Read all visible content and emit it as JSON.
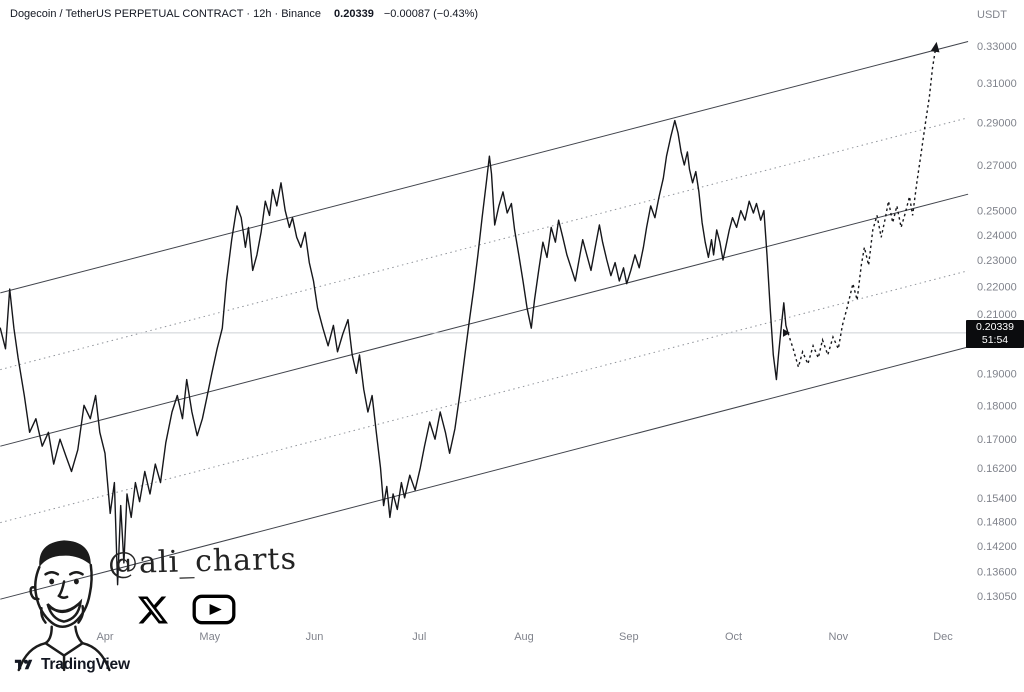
{
  "header": {
    "symbol_title": "Dogecoin / TetherUS PERPETUAL CONTRACT · 12h · Binance",
    "last_price": "0.20339",
    "change": "−0.00087 (−0.43%)",
    "quote_currency": "USDT"
  },
  "price_scale": {
    "badge": {
      "price": "0.20339",
      "countdown": "51:54"
    }
  },
  "watermark": {
    "handle": "@ali_charts",
    "portrait": "cartoon-man-face-sketch",
    "social_icons": [
      "x-twitter-logo",
      "youtube-logo"
    ]
  },
  "footer": {
    "brand": "TradingView"
  },
  "colors": {
    "price_line": "#16171b",
    "axis_text": "#80838c",
    "channel_solid": "#41444c",
    "channel_dotted": "#90949b",
    "badge_bg": "#0b0c0e",
    "current_price_line": "#cdd0d5"
  },
  "chart_data": {
    "type": "line",
    "title": "Dogecoin / TetherUS PERPETUAL CONTRACT · 12h · Binance",
    "scale": "log",
    "last_price": 0.20339,
    "x_axis": {
      "unit": "month",
      "labels": [
        "Apr",
        "May",
        "Jun",
        "Jul",
        "Aug",
        "Sep",
        "Oct",
        "Nov",
        "Dec"
      ]
    },
    "y_axis": {
      "ylim": [
        0.128,
        0.345
      ],
      "ticks": [
        {
          "label": "0.33000",
          "value": 0.33
        },
        {
          "label": "0.31000",
          "value": 0.31
        },
        {
          "label": "0.29000",
          "value": 0.29
        },
        {
          "label": "0.27000",
          "value": 0.27
        },
        {
          "label": "0.25000",
          "value": 0.25
        },
        {
          "label": "0.24000",
          "value": 0.24
        },
        {
          "label": "0.23000",
          "value": 0.23
        },
        {
          "label": "0.22000",
          "value": 0.22
        },
        {
          "label": "0.21000",
          "value": 0.21
        },
        {
          "label": "0.19000",
          "value": 0.19
        },
        {
          "label": "0.18000",
          "value": 0.18
        },
        {
          "label": "0.17000",
          "value": 0.17
        },
        {
          "label": "0.16200",
          "value": 0.162
        },
        {
          "label": "0.15400",
          "value": 0.154
        },
        {
          "label": "0.14800",
          "value": 0.148
        },
        {
          "label": "0.14200",
          "value": 0.142
        },
        {
          "label": "0.13600",
          "value": 0.136
        },
        {
          "label": "0.13050",
          "value": 0.1305
        }
      ]
    },
    "channel": {
      "t_left": -1.0,
      "t_right": 8.24,
      "lines": [
        {
          "name": "upper",
          "style": "solid",
          "p_left": 0.2176,
          "p_right": 0.3325
        },
        {
          "name": "upper-quartile",
          "style": "dotted",
          "p_left": 0.1912,
          "p_right": 0.2924
        },
        {
          "name": "median",
          "style": "solid",
          "p_left": 0.168,
          "p_right": 0.257
        },
        {
          "name": "lower-quartile",
          "style": "dotted",
          "p_left": 0.1477,
          "p_right": 0.2259
        },
        {
          "name": "lower",
          "style": "solid",
          "p_left": 0.1298,
          "p_right": 0.1986
        }
      ]
    },
    "series": [
      [
        -1.0,
        0.205
      ],
      [
        -0.95,
        0.198
      ],
      [
        -0.91,
        0.219
      ],
      [
        -0.87,
        0.205
      ],
      [
        -0.83,
        0.195
      ],
      [
        -0.77,
        0.183
      ],
      [
        -0.72,
        0.172
      ],
      [
        -0.66,
        0.176
      ],
      [
        -0.6,
        0.168
      ],
      [
        -0.54,
        0.172
      ],
      [
        -0.49,
        0.163
      ],
      [
        -0.43,
        0.17
      ],
      [
        -0.37,
        0.165
      ],
      [
        -0.32,
        0.161
      ],
      [
        -0.26,
        0.167
      ],
      [
        -0.2,
        0.18
      ],
      [
        -0.14,
        0.176
      ],
      [
        -0.09,
        0.183
      ],
      [
        -0.05,
        0.172
      ],
      [
        0.0,
        0.166
      ],
      [
        0.05,
        0.15
      ],
      [
        0.09,
        0.158
      ],
      [
        0.12,
        0.133
      ],
      [
        0.15,
        0.152
      ],
      [
        0.18,
        0.138
      ],
      [
        0.21,
        0.155
      ],
      [
        0.25,
        0.149
      ],
      [
        0.29,
        0.158
      ],
      [
        0.33,
        0.153
      ],
      [
        0.38,
        0.161
      ],
      [
        0.43,
        0.155
      ],
      [
        0.48,
        0.163
      ],
      [
        0.53,
        0.158
      ],
      [
        0.58,
        0.169
      ],
      [
        0.64,
        0.178
      ],
      [
        0.69,
        0.183
      ],
      [
        0.74,
        0.176
      ],
      [
        0.78,
        0.188
      ],
      [
        0.83,
        0.178
      ],
      [
        0.88,
        0.171
      ],
      [
        0.93,
        0.176
      ],
      [
        0.97,
        0.182
      ],
      [
        1.02,
        0.19
      ],
      [
        1.07,
        0.198
      ],
      [
        1.12,
        0.205
      ],
      [
        1.16,
        0.222
      ],
      [
        1.21,
        0.238
      ],
      [
        1.26,
        0.252
      ],
      [
        1.3,
        0.247
      ],
      [
        1.34,
        0.235
      ],
      [
        1.37,
        0.243
      ],
      [
        1.41,
        0.226
      ],
      [
        1.45,
        0.232
      ],
      [
        1.49,
        0.241
      ],
      [
        1.53,
        0.254
      ],
      [
        1.57,
        0.248
      ],
      [
        1.6,
        0.259
      ],
      [
        1.64,
        0.252
      ],
      [
        1.68,
        0.262
      ],
      [
        1.72,
        0.25
      ],
      [
        1.76,
        0.243
      ],
      [
        1.79,
        0.247
      ],
      [
        1.83,
        0.239
      ],
      [
        1.87,
        0.235
      ],
      [
        1.91,
        0.241
      ],
      [
        1.95,
        0.229
      ],
      [
        1.99,
        0.222
      ],
      [
        2.03,
        0.212
      ],
      [
        2.08,
        0.205
      ],
      [
        2.13,
        0.199
      ],
      [
        2.18,
        0.206
      ],
      [
        2.22,
        0.197
      ],
      [
        2.27,
        0.203
      ],
      [
        2.32,
        0.208
      ],
      [
        2.36,
        0.196
      ],
      [
        2.4,
        0.19
      ],
      [
        2.43,
        0.196
      ],
      [
        2.47,
        0.185
      ],
      [
        2.51,
        0.178
      ],
      [
        2.55,
        0.183
      ],
      [
        2.59,
        0.172
      ],
      [
        2.63,
        0.162
      ],
      [
        2.66,
        0.152
      ],
      [
        2.69,
        0.157
      ],
      [
        2.72,
        0.149
      ],
      [
        2.75,
        0.155
      ],
      [
        2.79,
        0.151
      ],
      [
        2.83,
        0.158
      ],
      [
        2.86,
        0.154
      ],
      [
        2.91,
        0.16
      ],
      [
        2.96,
        0.156
      ],
      [
        3.01,
        0.162
      ],
      [
        3.05,
        0.168
      ],
      [
        3.1,
        0.175
      ],
      [
        3.15,
        0.17
      ],
      [
        3.2,
        0.178
      ],
      [
        3.25,
        0.172
      ],
      [
        3.29,
        0.166
      ],
      [
        3.34,
        0.173
      ],
      [
        3.39,
        0.184
      ],
      [
        3.44,
        0.197
      ],
      [
        3.48,
        0.208
      ],
      [
        3.52,
        0.219
      ],
      [
        3.56,
        0.232
      ],
      [
        3.6,
        0.247
      ],
      [
        3.64,
        0.262
      ],
      [
        3.67,
        0.274
      ],
      [
        3.69,
        0.266
      ],
      [
        3.72,
        0.244
      ],
      [
        3.76,
        0.252
      ],
      [
        3.8,
        0.258
      ],
      [
        3.84,
        0.249
      ],
      [
        3.88,
        0.253
      ],
      [
        3.91,
        0.242
      ],
      [
        3.95,
        0.232
      ],
      [
        3.99,
        0.222
      ],
      [
        4.03,
        0.212
      ],
      [
        4.07,
        0.205
      ],
      [
        4.1,
        0.215
      ],
      [
        4.14,
        0.226
      ],
      [
        4.18,
        0.237
      ],
      [
        4.22,
        0.231
      ],
      [
        4.26,
        0.243
      ],
      [
        4.3,
        0.237
      ],
      [
        4.33,
        0.246
      ],
      [
        4.37,
        0.239
      ],
      [
        4.41,
        0.232
      ],
      [
        4.45,
        0.227
      ],
      [
        4.49,
        0.222
      ],
      [
        4.53,
        0.231
      ],
      [
        4.56,
        0.238
      ],
      [
        4.6,
        0.232
      ],
      [
        4.64,
        0.226
      ],
      [
        4.68,
        0.235
      ],
      [
        4.72,
        0.244
      ],
      [
        4.75,
        0.237
      ],
      [
        4.79,
        0.23
      ],
      [
        4.83,
        0.224
      ],
      [
        4.87,
        0.229
      ],
      [
        4.91,
        0.222
      ],
      [
        4.95,
        0.227
      ],
      [
        4.98,
        0.221
      ],
      [
        5.02,
        0.226
      ],
      [
        5.06,
        0.232
      ],
      [
        5.1,
        0.227
      ],
      [
        5.14,
        0.235
      ],
      [
        5.17,
        0.243
      ],
      [
        5.21,
        0.252
      ],
      [
        5.25,
        0.247
      ],
      [
        5.29,
        0.256
      ],
      [
        5.33,
        0.264
      ],
      [
        5.36,
        0.274
      ],
      [
        5.4,
        0.283
      ],
      [
        5.44,
        0.291
      ],
      [
        5.47,
        0.285
      ],
      [
        5.5,
        0.276
      ],
      [
        5.53,
        0.27
      ],
      [
        5.56,
        0.276
      ],
      [
        5.58,
        0.268
      ],
      [
        5.61,
        0.262
      ],
      [
        5.64,
        0.267
      ],
      [
        5.67,
        0.258
      ],
      [
        5.7,
        0.245
      ],
      [
        5.73,
        0.237
      ],
      [
        5.76,
        0.231
      ],
      [
        5.79,
        0.238
      ],
      [
        5.81,
        0.232
      ],
      [
        5.84,
        0.242
      ],
      [
        5.87,
        0.237
      ],
      [
        5.9,
        0.23
      ],
      [
        5.93,
        0.236
      ],
      [
        5.96,
        0.242
      ],
      [
        5.99,
        0.247
      ],
      [
        6.03,
        0.243
      ],
      [
        6.07,
        0.25
      ],
      [
        6.11,
        0.246
      ],
      [
        6.15,
        0.254
      ],
      [
        6.19,
        0.249
      ],
      [
        6.22,
        0.253
      ],
      [
        6.26,
        0.246
      ],
      [
        6.29,
        0.25
      ],
      [
        6.32,
        0.232
      ],
      [
        6.35,
        0.212
      ],
      [
        6.38,
        0.196
      ],
      [
        6.41,
        0.188
      ],
      [
        6.43,
        0.196
      ],
      [
        6.46,
        0.207
      ],
      [
        6.48,
        0.214
      ],
      [
        6.5,
        0.206
      ],
      [
        6.52,
        0.20339
      ]
    ],
    "projection": {
      "style": "dotted-freehand-forecast",
      "arrow_end": true,
      "points": [
        [
          6.52,
          0.2034
        ],
        [
          6.57,
          0.198
        ],
        [
          6.62,
          0.192
        ],
        [
          6.66,
          0.197
        ],
        [
          6.71,
          0.193
        ],
        [
          6.76,
          0.199
        ],
        [
          6.81,
          0.195
        ],
        [
          6.85,
          0.201
        ],
        [
          6.9,
          0.196
        ],
        [
          6.95,
          0.202
        ],
        [
          7.0,
          0.198
        ],
        [
          7.04,
          0.206
        ],
        [
          7.09,
          0.213
        ],
        [
          7.14,
          0.221
        ],
        [
          7.18,
          0.215
        ],
        [
          7.22,
          0.228
        ],
        [
          7.25,
          0.235
        ],
        [
          7.29,
          0.228
        ],
        [
          7.33,
          0.242
        ],
        [
          7.37,
          0.248
        ],
        [
          7.41,
          0.239
        ],
        [
          7.45,
          0.247
        ],
        [
          7.48,
          0.254
        ],
        [
          7.52,
          0.245
        ],
        [
          7.56,
          0.252
        ],
        [
          7.6,
          0.243
        ],
        [
          7.64,
          0.249
        ],
        [
          7.68,
          0.256
        ],
        [
          7.71,
          0.248
        ],
        [
          7.75,
          0.262
        ],
        [
          7.79,
          0.275
        ],
        [
          7.83,
          0.289
        ],
        [
          7.87,
          0.303
        ],
        [
          7.9,
          0.318
        ],
        [
          7.93,
          0.329
        ]
      ]
    }
  }
}
